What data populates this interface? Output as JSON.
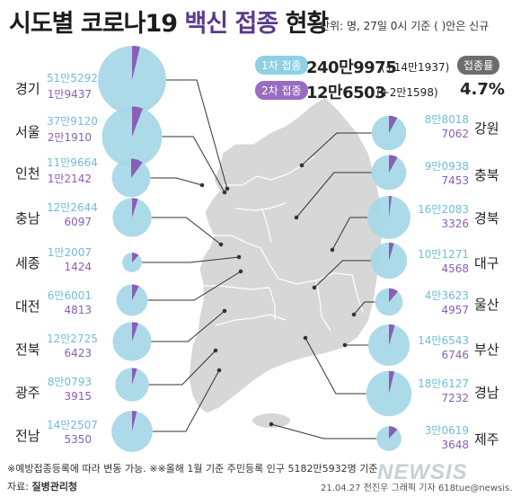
{
  "header": {
    "title_part1": "시도별 코로나19",
    "title_part2": "백신 접종",
    "title_part3": "현황",
    "unit_note": "단위: 명, 27일 0시 기준   ( )안은 신규"
  },
  "summary": {
    "dose1_label": "1차 접종",
    "dose1_value": "240만9975",
    "dose1_increase": "(+14만1937)",
    "dose2_label": "2차 접종",
    "dose2_value": "12만6503",
    "dose2_increase": "(+2만1598)",
    "rate_label": "접종률",
    "rate_value": "4.7%"
  },
  "chart_data": {
    "type": "pie",
    "title": "시도별 코로나19 백신 접종 현황",
    "series_names": [
      "1차 접종",
      "2차 접종"
    ],
    "colors": {
      "dose1": "#a8d8e8",
      "dose2": "#8a5eb5",
      "map": "#d7d7d7",
      "leader": "#333333"
    },
    "regions": [
      {
        "name": "경기",
        "dose1_text": "51만5292",
        "dose2_text": "1만9437",
        "dose1": 515292,
        "dose2": 19437,
        "side": "left"
      },
      {
        "name": "서울",
        "dose1_text": "37만9120",
        "dose2_text": "2만1910",
        "dose1": 379120,
        "dose2": 21910,
        "side": "left"
      },
      {
        "name": "인천",
        "dose1_text": "11만9664",
        "dose2_text": "1만2142",
        "dose1": 119664,
        "dose2": 12142,
        "side": "left"
      },
      {
        "name": "충남",
        "dose1_text": "12만2644",
        "dose2_text": "6097",
        "dose1": 122644,
        "dose2": 6097,
        "side": "left"
      },
      {
        "name": "세종",
        "dose1_text": "1만2007",
        "dose2_text": "1424",
        "dose1": 12007,
        "dose2": 1424,
        "side": "left"
      },
      {
        "name": "대전",
        "dose1_text": "6만6001",
        "dose2_text": "4813",
        "dose1": 66001,
        "dose2": 4813,
        "side": "left"
      },
      {
        "name": "전북",
        "dose1_text": "12만2725",
        "dose2_text": "6423",
        "dose1": 122725,
        "dose2": 6423,
        "side": "left"
      },
      {
        "name": "광주",
        "dose1_text": "8만0793",
        "dose2_text": "3915",
        "dose1": 80793,
        "dose2": 3915,
        "side": "left"
      },
      {
        "name": "전남",
        "dose1_text": "14만2507",
        "dose2_text": "5350",
        "dose1": 142507,
        "dose2": 5350,
        "side": "left"
      },
      {
        "name": "강원",
        "dose1_text": "8만8018",
        "dose2_text": "7062",
        "dose1": 88018,
        "dose2": 7062,
        "side": "right"
      },
      {
        "name": "충북",
        "dose1_text": "9만0938",
        "dose2_text": "7453",
        "dose1": 90938,
        "dose2": 7453,
        "side": "right"
      },
      {
        "name": "경북",
        "dose1_text": "16만2083",
        "dose2_text": "3326",
        "dose1": 162083,
        "dose2": 3326,
        "side": "right"
      },
      {
        "name": "대구",
        "dose1_text": "10만1271",
        "dose2_text": "4568",
        "dose1": 101271,
        "dose2": 4568,
        "side": "right"
      },
      {
        "name": "울산",
        "dose1_text": "4만3623",
        "dose2_text": "4957",
        "dose1": 43623,
        "dose2": 4957,
        "side": "right"
      },
      {
        "name": "부산",
        "dose1_text": "14만6543",
        "dose2_text": "6746",
        "dose1": 146543,
        "dose2": 6746,
        "side": "right"
      },
      {
        "name": "경남",
        "dose1_text": "18만6127",
        "dose2_text": "7232",
        "dose1": 186127,
        "dose2": 7232,
        "side": "right"
      },
      {
        "name": "제주",
        "dose1_text": "3만0619",
        "dose2_text": "3648",
        "dose1": 30619,
        "dose2": 3648,
        "side": "right"
      }
    ]
  },
  "footer": {
    "footnote": "※예방접종등록에 따라 변동 가능. ※※올해 1월 기준 주민등록 인구 5182만5932명 기준",
    "source_label": "자료:",
    "source_org": "질병관리청",
    "credit": "21.04.27 전진우 그래픽 기자 618tue@newsis.com",
    "logo": "NEWSIS"
  }
}
